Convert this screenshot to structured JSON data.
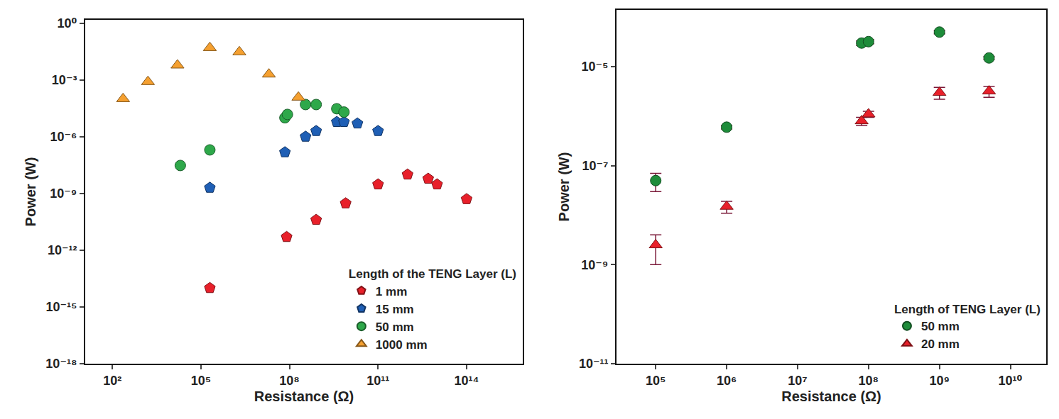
{
  "chart_data": [
    {
      "type": "scatter",
      "log": true,
      "grid": false,
      "legend": "lower right",
      "xlabel": "Resistance (Ω)",
      "ylabel": "Power (W)",
      "legend_title": "Length of the TENG Layer (L)",
      "xlim": [
        12,
        8000000000000000.0
      ],
      "ylim": [
        1e-18,
        1.5
      ],
      "xticks": [
        {
          "value": 100,
          "label": "10²"
        },
        {
          "value": 100000.0,
          "label": "10⁵"
        },
        {
          "value": 100000000.0,
          "label": "10⁸"
        },
        {
          "value": 100000000000.0,
          "label": "10¹¹"
        },
        {
          "value": 100000000000000.0,
          "label": "10¹⁴"
        }
      ],
      "yticks": [
        {
          "value": 1,
          "label": "10⁰"
        },
        {
          "value": 0.001,
          "label": "10⁻³"
        },
        {
          "value": 1e-06,
          "label": "10⁻⁶"
        },
        {
          "value": 1e-09,
          "label": "10⁻⁹"
        },
        {
          "value": 1e-12,
          "label": "10⁻¹²"
        },
        {
          "value": 1e-15,
          "label": "10⁻¹⁵"
        },
        {
          "value": 1e-18,
          "label": "10⁻¹⁸"
        }
      ],
      "series": [
        {
          "name": "1 mm",
          "color": "#e8202a",
          "marker": "pentagon",
          "x": [
            200000.0,
            80000000.0,
            800000000.0,
            8000000000.0,
            100000000000.0,
            1000000000000.0,
            5000000000000.0,
            10000000000000.0,
            100000000000000.0
          ],
          "values": [
            1e-14,
            5e-12,
            4e-11,
            3e-10,
            3e-09,
            1e-08,
            6e-09,
            3e-09,
            5e-10
          ]
        },
        {
          "name": "15 mm",
          "color": "#1f5fb5",
          "marker": "pentagon",
          "x": [
            200000.0,
            70000000.0,
            350000000.0,
            800000000.0,
            4000000000.0,
            7000000000.0,
            20000000000.0,
            100000000000.0
          ],
          "values": [
            2e-09,
            1.5e-07,
            1e-06,
            2e-06,
            6e-06,
            6e-06,
            5e-06,
            2e-06
          ]
        },
        {
          "name": "50 mm",
          "color": "#2ea84a",
          "marker": "circle",
          "x": [
            20000.0,
            200000.0,
            70000000.0,
            85000000.0,
            350000000.0,
            800000000.0,
            4000000000.0,
            7000000000.0
          ],
          "values": [
            3e-08,
            2e-07,
            1e-05,
            1.5e-05,
            5e-05,
            5e-05,
            3e-05,
            2e-05
          ]
        },
        {
          "name": "1000 mm",
          "color": "#f5a030",
          "marker": "triangle",
          "x": [
            230,
            1600,
            16000,
            200000,
            2000000,
            20000000,
            200000000
          ],
          "values": [
            0.0001,
            0.0008,
            0.006,
            0.05,
            0.03,
            0.002,
            0.00012
          ]
        }
      ]
    },
    {
      "type": "scatter",
      "log": true,
      "grid": false,
      "legend": "lower right",
      "xlabel": "Resistance (Ω)",
      "ylabel": "Power (W)",
      "legend_title": "Length of TENG Layer (L)",
      "xlim": [
        28000,
        32000000000.0
      ],
      "ylim": [
        1e-11,
        0.00014
      ],
      "xticks": [
        {
          "value": 100000.0,
          "label": "10⁵"
        },
        {
          "value": 1000000.0,
          "label": "10⁶"
        },
        {
          "value": 10000000.0,
          "label": "10⁷"
        },
        {
          "value": 100000000.0,
          "label": "10⁸"
        },
        {
          "value": 1000000000.0,
          "label": "10⁹"
        },
        {
          "value": 10000000000.0,
          "label": "10¹⁰"
        }
      ],
      "yticks": [
        {
          "value": 1e-05,
          "label": "10⁻⁵"
        },
        {
          "value": 1e-07,
          "label": "10⁻⁷"
        },
        {
          "value": 1e-09,
          "label": "10⁻⁹"
        },
        {
          "value": 1e-11,
          "label": "10⁻¹¹"
        }
      ],
      "series": [
        {
          "name": "50 mm",
          "color": "#1e8c3a",
          "marker": "circle",
          "x": [
            100000.0,
            1000000.0,
            80000000.0,
            100000000.0,
            1000000000.0,
            5000000000.0
          ],
          "values": [
            5e-08,
            6e-07,
            3e-05,
            3.2e-05,
            5e-05,
            1.5e-05
          ],
          "error": [
            2e-08,
            5e-08,
            3e-06,
            3e-06,
            4e-06,
            1e-06
          ]
        },
        {
          "name": "20 mm",
          "color": "#e8202a",
          "marker": "triangle",
          "x": [
            100000.0,
            1000000.0,
            80000000.0,
            100000000.0,
            1000000000.0,
            5000000000.0
          ],
          "values": [
            2.5e-09,
            1.5e-08,
            8e-07,
            1.1e-06,
            3e-06,
            3.2e-06
          ],
          "error": [
            1.5e-09,
            4e-09,
            1.5e-07,
            1.5e-07,
            8e-07,
            8e-07
          ]
        }
      ]
    }
  ]
}
